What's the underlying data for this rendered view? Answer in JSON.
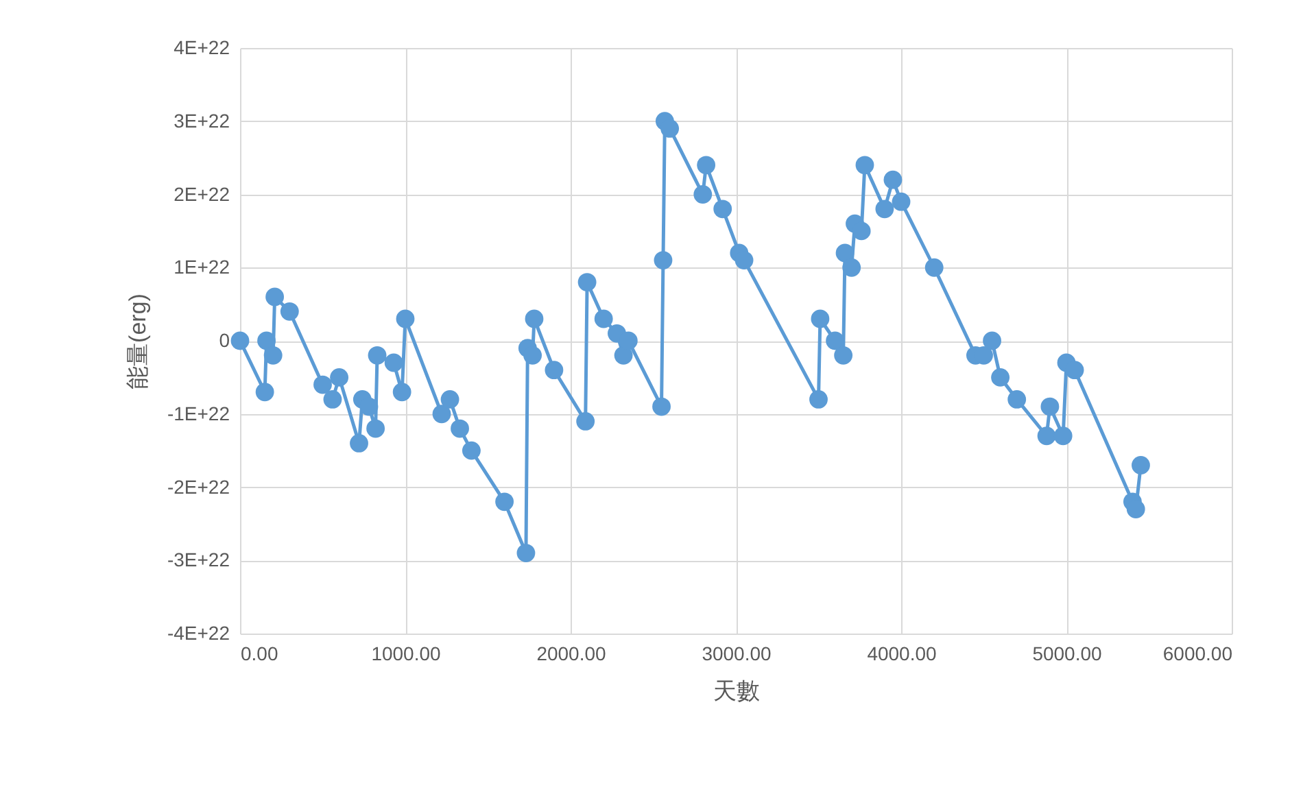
{
  "chart_data": {
    "type": "line",
    "xlabel": "天數",
    "ylabel": "能量(erg)",
    "grid": true,
    "marker": "circle",
    "line_style": "solid",
    "xlim": [
      0,
      6000
    ],
    "xticks": [
      {
        "value": 0,
        "label": "0.00"
      },
      {
        "value": 1000,
        "label": "1000.00"
      },
      {
        "value": 2000,
        "label": "2000.00"
      },
      {
        "value": 3000,
        "label": "3000.00"
      },
      {
        "value": 4000,
        "label": "4000.00"
      },
      {
        "value": 5000,
        "label": "5000.00"
      },
      {
        "value": 6000,
        "label": "6000.00"
      }
    ],
    "ylim": [
      -4e+22,
      4e+22
    ],
    "yticks": [
      {
        "value": -4e+22,
        "label": "-4E+22"
      },
      {
        "value": -3e+22,
        "label": "-3E+22"
      },
      {
        "value": -2e+22,
        "label": "-2E+22"
      },
      {
        "value": -1e+22,
        "label": "-1E+22"
      },
      0,
      {
        "value": 1e+22,
        "label": "1E+22"
      },
      {
        "value": 2e+22,
        "label": "2E+22"
      },
      {
        "value": 3e+22,
        "label": "3E+22"
      },
      {
        "value": 4e+22,
        "label": "4E+22"
      }
    ],
    "series": [
      {
        "color": "#5b9bd5",
        "x": [
          0,
          150,
          160,
          200,
          210,
          300,
          500,
          560,
          600,
          720,
          740,
          780,
          820,
          830,
          930,
          980,
          1000,
          1220,
          1270,
          1330,
          1400,
          1600,
          1730,
          1740,
          1770,
          1780,
          1900,
          2090,
          2100,
          2200,
          2280,
          2320,
          2350,
          2550,
          2560,
          2570,
          2600,
          2800,
          2820,
          2920,
          3020,
          3050,
          3500,
          3510,
          3600,
          3650,
          3660,
          3700,
          3720,
          3760,
          3780,
          3900,
          3950,
          4000,
          4200,
          4450,
          4500,
          4550,
          4600,
          4700,
          4880,
          4900,
          4980,
          5000,
          5050,
          5400,
          5420,
          5450
        ],
        "values": [
          0,
          -7e+21,
          0,
          -2e+21,
          6e+21,
          4e+21,
          -6e+21,
          -8e+21,
          -5e+21,
          -1.4e+22,
          -8e+21,
          -9e+21,
          -1.2e+22,
          -2e+21,
          -3e+21,
          -7e+21,
          3e+21,
          -1e+22,
          -8e+21,
          -1.2e+22,
          -1.5e+22,
          -2.2e+22,
          -2.9e+22,
          -1e+21,
          -2e+21,
          3e+21,
          -4e+21,
          -1.1e+22,
          8e+21,
          3e+21,
          1e+21,
          -2e+21,
          0,
          -9e+21,
          1.1e+22,
          3e+22,
          2.9e+22,
          2e+22,
          2.4e+22,
          1.8e+22,
          1.2e+22,
          1.1e+22,
          -8e+21,
          3e+21,
          0,
          -2e+21,
          1.2e+22,
          1e+22,
          1.6e+22,
          1.5e+22,
          2.4e+22,
          1.8e+22,
          2.2e+22,
          1.9e+22,
          1e+22,
          -2e+21,
          -2e+21,
          0,
          -5e+21,
          -8e+21,
          -1.3e+22,
          -9e+21,
          -1.3e+22,
          -3e+21,
          -4e+21,
          -2.2e+22,
          -2.3e+22,
          -1.7e+22
        ]
      }
    ]
  }
}
